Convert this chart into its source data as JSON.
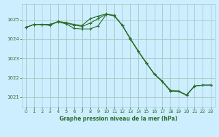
{
  "title": "Graphe pression niveau de la mer (hPa)",
  "background_color": "#cceeff",
  "grid_color": "#aacccc",
  "line_color": "#2d6e2d",
  "xlim": [
    -0.5,
    23.5
  ],
  "ylim": [
    1020.5,
    1025.8
  ],
  "yticks": [
    1021,
    1022,
    1023,
    1024,
    1025
  ],
  "xticks": [
    0,
    1,
    2,
    3,
    4,
    5,
    6,
    7,
    8,
    9,
    10,
    11,
    12,
    13,
    14,
    15,
    16,
    17,
    18,
    19,
    20,
    21,
    22,
    23
  ],
  "line1": [
    1024.6,
    1024.75,
    1024.75,
    1024.7,
    1024.9,
    1024.85,
    1024.75,
    1024.7,
    1025.05,
    1025.18,
    1025.3,
    1025.22,
    1024.72,
    1024.0,
    1023.35,
    1022.75,
    1022.2,
    1021.82,
    1021.35,
    1021.32,
    1021.12,
    1021.58,
    1021.62,
    1021.62
  ],
  "line2": [
    1024.6,
    1024.75,
    1024.75,
    1024.75,
    1024.9,
    1024.82,
    1024.72,
    1024.65,
    1024.82,
    1025.05,
    1025.28,
    1025.2,
    1024.7,
    1024.02,
    1023.37,
    1022.77,
    1022.18,
    1021.8,
    1021.32,
    1021.3,
    1021.1,
    1021.57,
    1021.62,
    1021.62
  ],
  "line3": [
    1024.6,
    1024.75,
    1024.75,
    1024.75,
    1024.88,
    1024.78,
    1024.55,
    1024.52,
    1024.52,
    1024.68,
    1025.27,
    1025.2,
    1024.7,
    1024.02,
    1023.37,
    1022.77,
    1022.18,
    1021.8,
    1021.32,
    1021.3,
    1021.1,
    1021.57,
    1021.62,
    1021.62
  ]
}
